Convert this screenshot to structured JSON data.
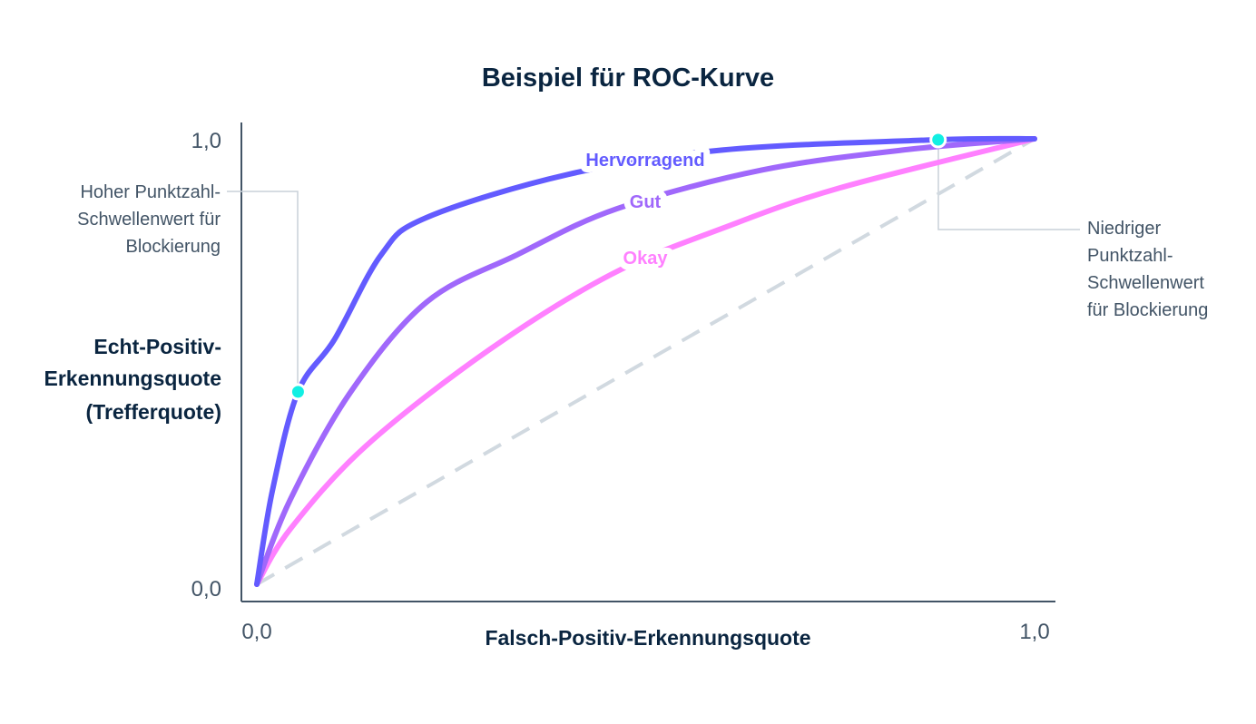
{
  "chart_data": {
    "type": "line",
    "title": "Beispiel für ROC-Kurve",
    "xlabel": "Falsch-Positiv-Erkennungsquote",
    "ylabel": [
      "Echt-Positiv-",
      "Erkennungsquote",
      "(Trefferquote)"
    ],
    "xlim": [
      0,
      1
    ],
    "ylim": [
      0,
      1
    ],
    "x_ticks": [
      "0,0",
      "1,0"
    ],
    "y_ticks": [
      "0,0",
      "1,0"
    ],
    "grid": false,
    "series": [
      {
        "name": "Hervorragend",
        "color": "#635bff",
        "points": [
          [
            0,
            0
          ],
          [
            0.02,
            0.21
          ],
          [
            0.053,
            0.432
          ],
          [
            0.1,
            0.55
          ],
          [
            0.16,
            0.74
          ],
          [
            0.218,
            0.823
          ],
          [
            0.4,
            0.92
          ],
          [
            0.6,
            0.975
          ],
          [
            0.876,
            0.998
          ],
          [
            1,
            1
          ]
        ]
      },
      {
        "name": "Gut",
        "color": "#a068fb",
        "points": [
          [
            0,
            0
          ],
          [
            0.043,
            0.19
          ],
          [
            0.12,
            0.43
          ],
          [
            0.218,
            0.633
          ],
          [
            0.335,
            0.74
          ],
          [
            0.463,
            0.843
          ],
          [
            0.65,
            0.93
          ],
          [
            0.837,
            0.976
          ],
          [
            1,
            1
          ]
        ]
      },
      {
        "name": "Okay",
        "color": "#ff80ff",
        "points": [
          [
            0,
            0
          ],
          [
            0.043,
            0.124
          ],
          [
            0.14,
            0.31
          ],
          [
            0.296,
            0.523
          ],
          [
            0.455,
            0.695
          ],
          [
            0.6,
            0.8
          ],
          [
            0.75,
            0.89
          ],
          [
            1,
            1
          ]
        ]
      },
      {
        "color": "#d1d9e0",
        "dashed": true,
        "points": [
          [
            0,
            0
          ],
          [
            1,
            1
          ]
        ]
      }
    ],
    "markers": [
      {
        "x": 0.053,
        "y": 0.432,
        "color": "#11efe3"
      },
      {
        "x": 0.876,
        "y": 0.998,
        "color": "#11efe3"
      }
    ],
    "annotations": [
      {
        "lines": [
          "Hoher Punktzahl-",
          "Schwellenwert für",
          "Blockierung"
        ]
      },
      {
        "lines": [
          "Niedriger",
          "Punktzahl-",
          "Schwellenwert",
          "für Blockierung"
        ]
      }
    ]
  }
}
